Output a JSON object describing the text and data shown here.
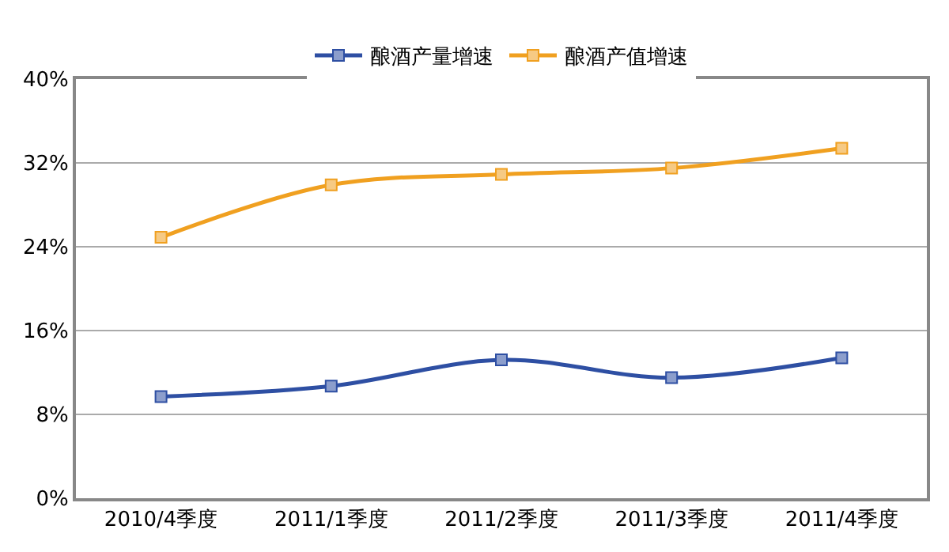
{
  "chart_data": {
    "type": "line",
    "categories": [
      "2010/4季度",
      "2011/1季度",
      "2011/2季度",
      "2011/3季度",
      "2011/4季度"
    ],
    "series": [
      {
        "name": "酿酒产量增速",
        "color": "#2e4fa3",
        "values": [
          9.7,
          10.7,
          13.2,
          11.5,
          13.4
        ]
      },
      {
        "name": "酿酒产值增速",
        "color": "#f0a020",
        "values": [
          24.9,
          29.9,
          30.9,
          31.5,
          33.4
        ]
      }
    ],
    "ylim": [
      0,
      40
    ],
    "yticks": [
      {
        "value": 0,
        "label": "0%"
      },
      {
        "value": 8,
        "label": "8%"
      },
      {
        "value": 16,
        "label": "16%"
      },
      {
        "value": 24,
        "label": "24%"
      },
      {
        "value": 32,
        "label": "32%"
      },
      {
        "value": 40,
        "label": "40%"
      }
    ],
    "grid": "y",
    "legend": "top",
    "marker": "square",
    "line_style": "solid"
  }
}
